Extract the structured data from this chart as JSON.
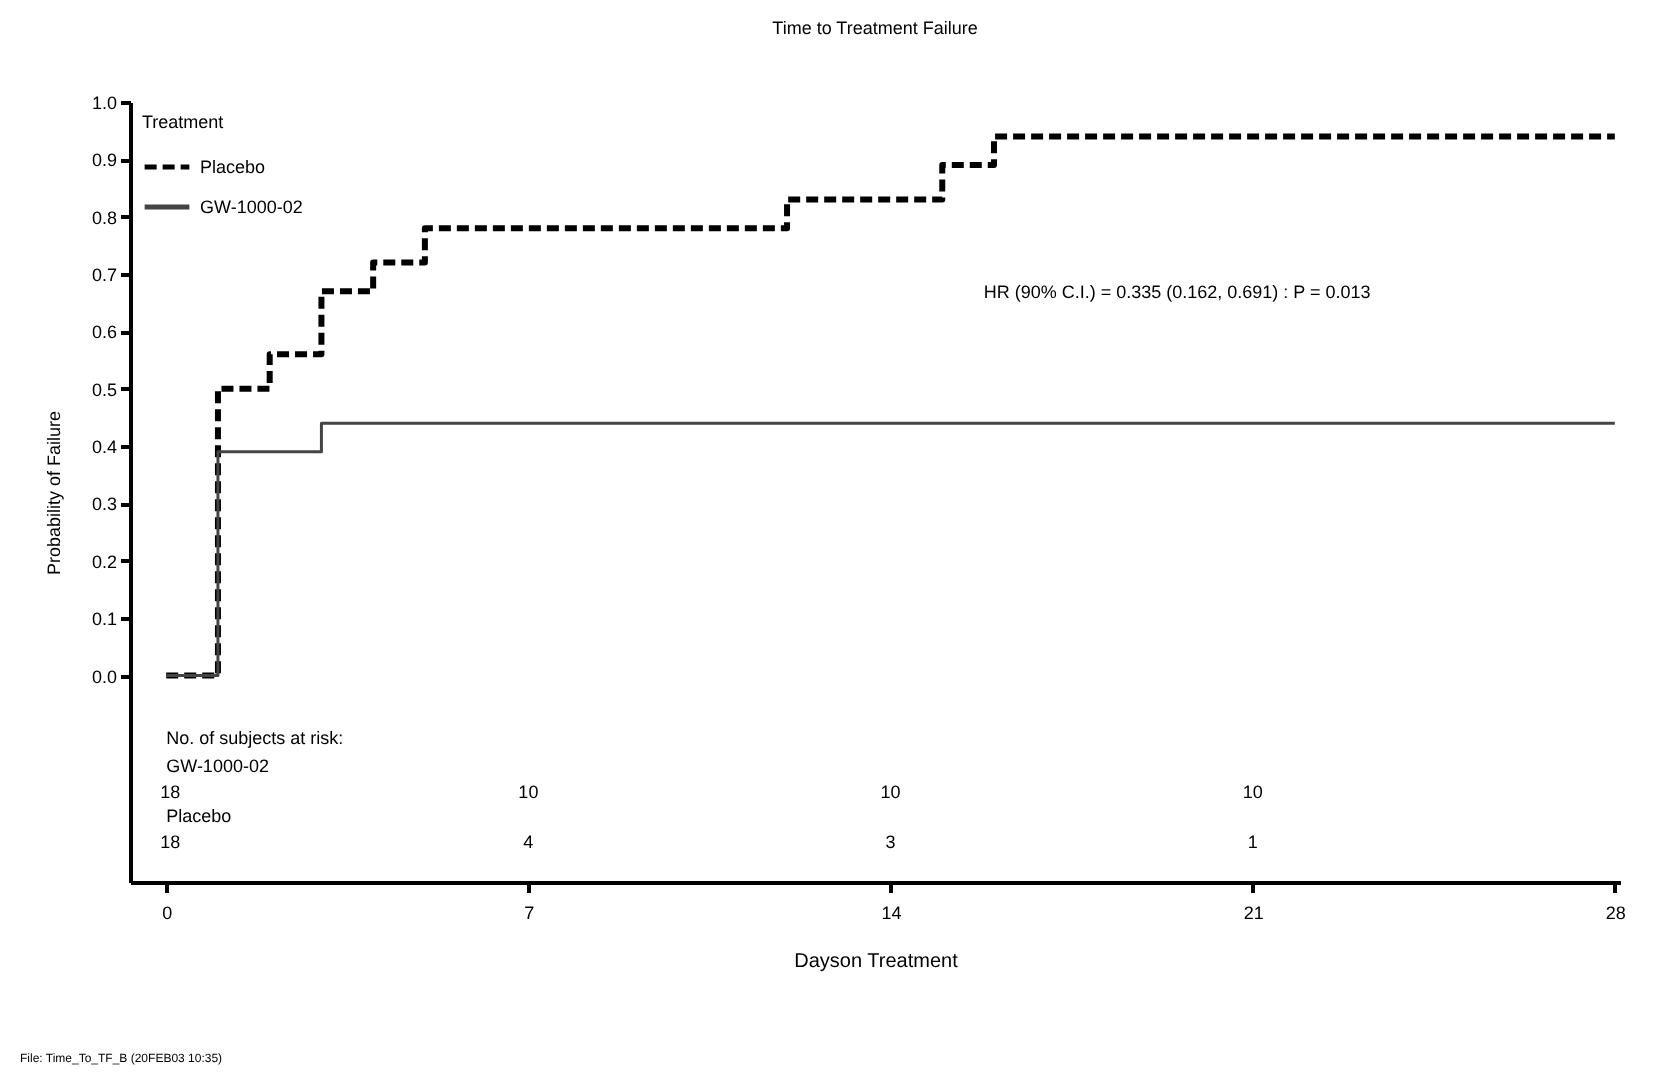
{
  "chart_data": {
    "type": "step",
    "title": "Time to Treatment Failure",
    "xlabel": "Dayson Treatment",
    "ylabel": "Probability of Failure",
    "legend_title": "Treatment",
    "legend": "top left",
    "series": [
      {
        "name": "Placebo",
        "color": "#000000",
        "line_style": "dashed",
        "x": [
          0,
          1,
          2,
          3,
          4,
          5,
          12,
          15,
          16,
          28
        ],
        "values": [
          0,
          0.5,
          0.56,
          0.67,
          0.72,
          0.78,
          0.83,
          0.89,
          0.94,
          0.94
        ]
      },
      {
        "name": "GW-1000-02",
        "color": "#444444",
        "line_style": "solid",
        "x": [
          0,
          1,
          3,
          28
        ],
        "values": [
          0,
          0.39,
          0.44,
          0.44
        ]
      }
    ],
    "xlim": [
      -0.7,
      28.1
    ],
    "xticks": [
      0,
      7,
      14,
      21,
      28
    ],
    "ylim": [
      -0.36,
      1.0
    ],
    "yticks": [
      {
        "value": 0,
        "label": "0.0"
      },
      0.1,
      0.2,
      0.3,
      0.4,
      0.5,
      0.6,
      0.7,
      0.8,
      0.9,
      {
        "value": 1,
        "label": "1.0"
      }
    ],
    "grid": false,
    "marker": "none",
    "annotations": [
      "HR (90% C.I.)  =  0.335  (0.162, 0.691)  :  P = 0.013",
      "No. of subjects at risk:",
      "GW-1000-02",
      "18",
      "10",
      "10",
      "10",
      "Placebo",
      "18",
      "4",
      "3",
      "1",
      "File: Time_To_TF_B (20FEB03 10:35)"
    ]
  }
}
